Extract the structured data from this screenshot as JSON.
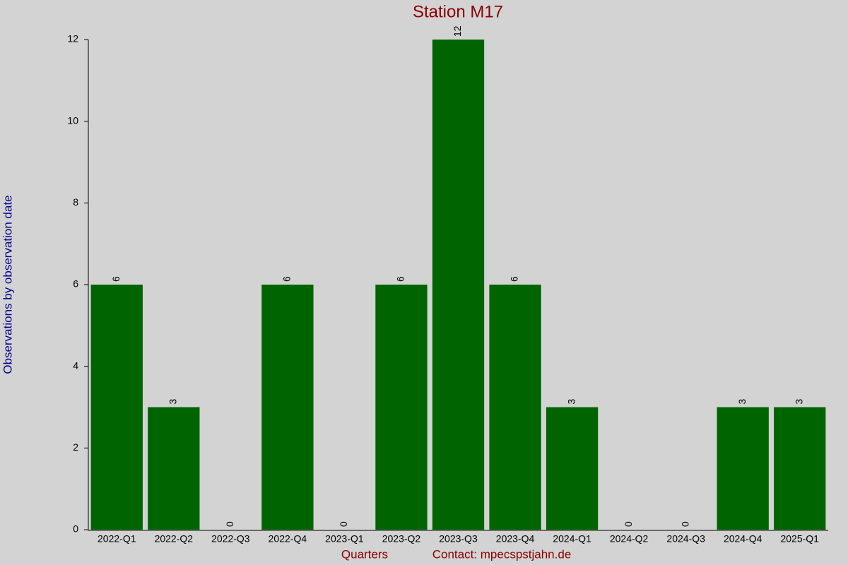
{
  "chart_data": {
    "type": "bar",
    "title": "Station M17",
    "y_label": "Observations by observation date",
    "x_label": "Quarters",
    "contact": "Contact: mpecspstjahn.de",
    "categories": [
      "2022-Q1",
      "2022-Q2",
      "2022-Q3",
      "2022-Q4",
      "2023-Q1",
      "2023-Q2",
      "2023-Q3",
      "2023-Q4",
      "2024-Q1",
      "2024-Q2",
      "2024-Q3",
      "2024-Q4",
      "2025-Q1"
    ],
    "values": [
      6,
      3,
      0,
      6,
      0,
      6,
      12,
      6,
      3,
      0,
      0,
      3,
      3
    ],
    "color": "#006400",
    "ylim": [
      0,
      12
    ],
    "yticks": [
      0,
      2,
      4,
      6,
      8,
      10,
      12
    ],
    "grid": false
  }
}
